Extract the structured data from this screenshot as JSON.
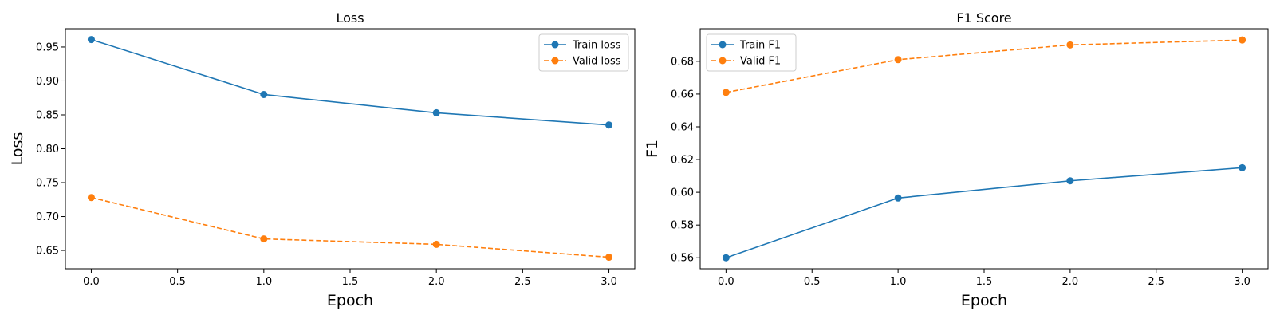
{
  "colors": {
    "train": "#1f77b4",
    "valid": "#ff7f0e"
  },
  "chart_data": [
    {
      "type": "line",
      "title": "Loss",
      "xlabel": "Epoch",
      "ylabel": "Loss",
      "x": [
        0,
        1,
        2,
        3
      ],
      "xlim": [
        -0.15,
        3.15
      ],
      "ylim": [
        0.623,
        0.977
      ],
      "xticks": [
        0.0,
        0.5,
        1.0,
        1.5,
        2.0,
        2.5,
        3.0
      ],
      "xtick_labels": [
        "0.0",
        "0.5",
        "1.0",
        "1.5",
        "2.0",
        "2.5",
        "3.0"
      ],
      "yticks": [
        0.65,
        0.7,
        0.75,
        0.8,
        0.85,
        0.9,
        0.95
      ],
      "ytick_labels": [
        "0.65",
        "0.70",
        "0.75",
        "0.80",
        "0.85",
        "0.90",
        "0.95"
      ],
      "grid": false,
      "legend_position": "top-right",
      "series": [
        {
          "name": "Train loss",
          "values": [
            0.961,
            0.88,
            0.853,
            0.835
          ],
          "style": "solid",
          "marker": "circle",
          "color": "#1f77b4"
        },
        {
          "name": "Valid loss",
          "values": [
            0.728,
            0.667,
            0.659,
            0.64
          ],
          "style": "dashed",
          "marker": "circle",
          "color": "#ff7f0e"
        }
      ]
    },
    {
      "type": "line",
      "title": "F1 Score",
      "xlabel": "Epoch",
      "ylabel": "F1",
      "x": [
        0,
        1,
        2,
        3
      ],
      "xlim": [
        -0.15,
        3.15
      ],
      "ylim": [
        0.5533,
        0.6999
      ],
      "xticks": [
        0.0,
        0.5,
        1.0,
        1.5,
        2.0,
        2.5,
        3.0
      ],
      "xtick_labels": [
        "0.0",
        "0.5",
        "1.0",
        "1.5",
        "2.0",
        "2.5",
        "3.0"
      ],
      "yticks": [
        0.56,
        0.58,
        0.6,
        0.62,
        0.64,
        0.66,
        0.68
      ],
      "ytick_labels": [
        "0.56",
        "0.58",
        "0.60",
        "0.62",
        "0.64",
        "0.66",
        "0.68"
      ],
      "grid": false,
      "legend_position": "top-left",
      "series": [
        {
          "name": "Train F1",
          "values": [
            0.56,
            0.5965,
            0.607,
            0.615
          ],
          "style": "solid",
          "marker": "circle",
          "color": "#1f77b4"
        },
        {
          "name": "Valid F1",
          "values": [
            0.661,
            0.681,
            0.69,
            0.693
          ],
          "style": "dashed",
          "marker": "circle",
          "color": "#ff7f0e"
        }
      ]
    }
  ]
}
